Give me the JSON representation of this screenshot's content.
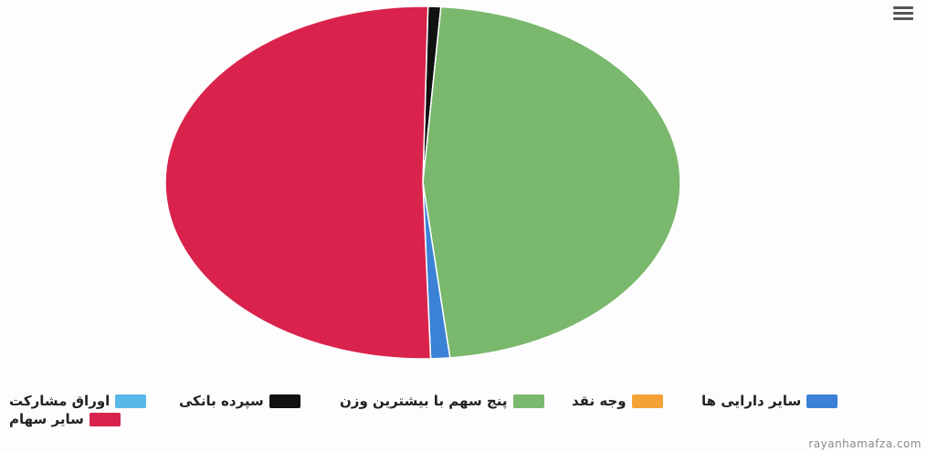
{
  "toolbar": {
    "menu_icon": "hamburger-menu-icon"
  },
  "chart_data": {
    "type": "pie",
    "unit": "percent",
    "slices": [
      {
        "label": "سپرده بانکی",
        "value": 0.8,
        "color": "#111111"
      },
      {
        "label": "پنج سهم با بیشترین وزن",
        "value": 47.2,
        "color": "#7ab86d"
      },
      {
        "label": "سایر دارایی ها",
        "value": 1.2,
        "color": "#3b82d6"
      },
      {
        "label": "سایر سهام",
        "value": 50.8,
        "color": "#d9234c"
      },
      {
        "label": "اوراق مشارکت",
        "value": 0.0,
        "color": "#58b8e8"
      },
      {
        "label": "وجه نقد",
        "value": 0.0,
        "color": "#f4a236"
      }
    ]
  },
  "legend": {
    "items": [
      {
        "label": "اوراق مشارکت",
        "color": "#58b8e8"
      },
      {
        "label": "سپرده بانکی",
        "color": "#111111"
      },
      {
        "label": "پنج سهم با بیشترین وزن",
        "color": "#7ab86d"
      },
      {
        "label": "وجه نقد",
        "color": "#f4a236"
      },
      {
        "label": "سایر دارایی ها",
        "color": "#3b82d6"
      },
      {
        "label": "سایر سهام",
        "color": "#d9234c"
      }
    ]
  },
  "watermark": "rayanhamafza.com"
}
